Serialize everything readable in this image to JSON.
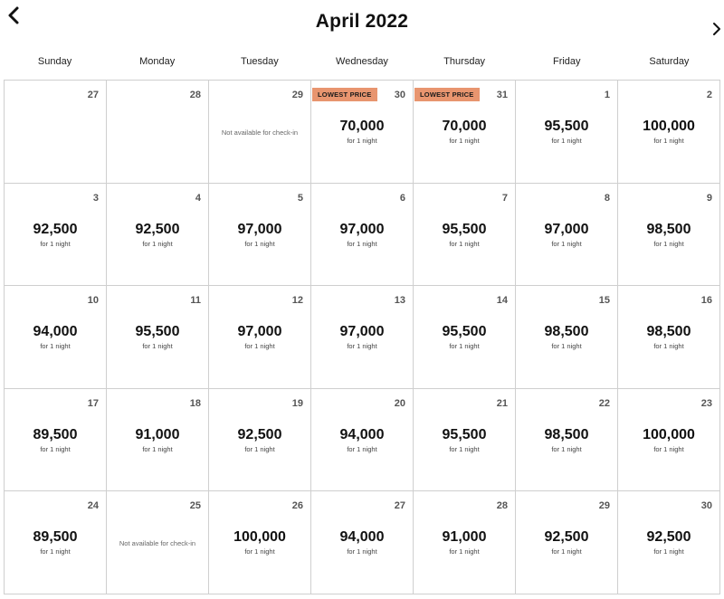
{
  "header": {
    "title": "April 2022",
    "prev_icon": "chevron-left-icon",
    "next_icon": "chevron-right-icon"
  },
  "weekdays": [
    "Sunday",
    "Monday",
    "Tuesday",
    "Wednesday",
    "Thursday",
    "Friday",
    "Saturday"
  ],
  "colors": {
    "badge_bg": "#e8956f",
    "grid_line": "#cfcfcf"
  },
  "days": [
    {
      "day": "27"
    },
    {
      "day": "28"
    },
    {
      "day": "29",
      "note": "Not available for check-in"
    },
    {
      "day": "30",
      "badge": "LOWEST PRICE",
      "price": "70,000",
      "nights": "for 1 night"
    },
    {
      "day": "31",
      "badge": "LOWEST PRICE",
      "price": "70,000",
      "nights": "for 1 night"
    },
    {
      "day": "1",
      "price": "95,500",
      "nights": "for 1 night"
    },
    {
      "day": "2",
      "price": "100,000",
      "nights": "for 1 night"
    },
    {
      "day": "3",
      "price": "92,500",
      "nights": "for 1 night"
    },
    {
      "day": "4",
      "price": "92,500",
      "nights": "for 1 night"
    },
    {
      "day": "5",
      "price": "97,000",
      "nights": "for 1 night"
    },
    {
      "day": "6",
      "price": "97,000",
      "nights": "for 1 night"
    },
    {
      "day": "7",
      "price": "95,500",
      "nights": "for 1 night"
    },
    {
      "day": "8",
      "price": "97,000",
      "nights": "for 1 night"
    },
    {
      "day": "9",
      "price": "98,500",
      "nights": "for 1 night"
    },
    {
      "day": "10",
      "price": "94,000",
      "nights": "for 1 night"
    },
    {
      "day": "11",
      "price": "95,500",
      "nights": "for 1 night"
    },
    {
      "day": "12",
      "price": "97,000",
      "nights": "for 1 night"
    },
    {
      "day": "13",
      "price": "97,000",
      "nights": "for 1 night"
    },
    {
      "day": "14",
      "price": "95,500",
      "nights": "for 1 night"
    },
    {
      "day": "15",
      "price": "98,500",
      "nights": "for 1 night"
    },
    {
      "day": "16",
      "price": "98,500",
      "nights": "for 1 night"
    },
    {
      "day": "17",
      "price": "89,500",
      "nights": "for 1 night"
    },
    {
      "day": "18",
      "price": "91,000",
      "nights": "for 1 night"
    },
    {
      "day": "19",
      "price": "92,500",
      "nights": "for 1 night"
    },
    {
      "day": "20",
      "price": "94,000",
      "nights": "for 1 night"
    },
    {
      "day": "21",
      "price": "95,500",
      "nights": "for 1 night"
    },
    {
      "day": "22",
      "price": "98,500",
      "nights": "for 1 night"
    },
    {
      "day": "23",
      "price": "100,000",
      "nights": "for 1 night"
    },
    {
      "day": "24",
      "price": "89,500",
      "nights": "for 1 night"
    },
    {
      "day": "25",
      "note": "Not available for check-in"
    },
    {
      "day": "26",
      "price": "100,000",
      "nights": "for 1 night"
    },
    {
      "day": "27",
      "price": "94,000",
      "nights": "for 1 night"
    },
    {
      "day": "28",
      "price": "91,000",
      "nights": "for 1 night"
    },
    {
      "day": "29",
      "price": "92,500",
      "nights": "for 1 night"
    },
    {
      "day": "30",
      "price": "92,500",
      "nights": "for 1 night"
    }
  ]
}
